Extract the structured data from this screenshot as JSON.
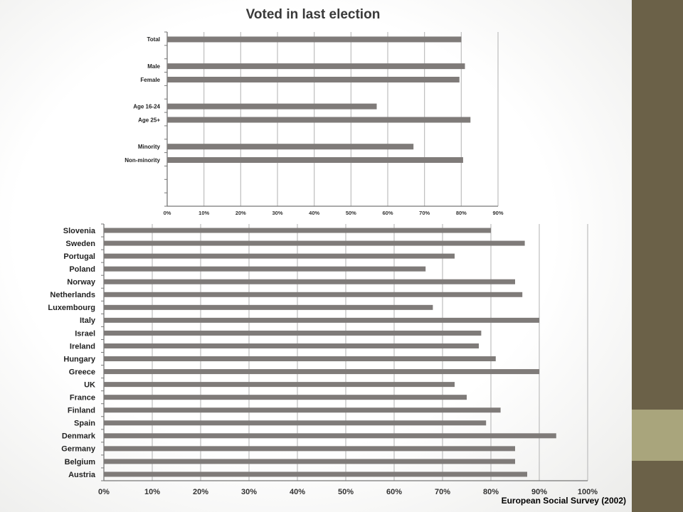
{
  "colors": {
    "bar": "#7f7b79",
    "grid": "#bdbdbd",
    "sidebar_dark": "#6b6148",
    "sidebar_light": "#a9a57c"
  },
  "source_note": "European Social Survey (2002)",
  "chart_data": [
    {
      "type": "bar",
      "orientation": "horizontal",
      "title": "Voted in last election",
      "categories": [
        "Total",
        "Male",
        "Female",
        "Age 16-24",
        "Age 25+",
        "Minority",
        "Non-minority"
      ],
      "values": [
        80,
        81,
        79.5,
        57,
        82.5,
        67,
        80.5
      ],
      "x_ticks": [
        "0%",
        "10%",
        "20%",
        "30%",
        "40%",
        "50%",
        "60%",
        "70%",
        "80%",
        "90%"
      ],
      "xlim": [
        0,
        90
      ],
      "grid": true
    },
    {
      "type": "bar",
      "orientation": "horizontal",
      "categories": [
        "Slovenia",
        "Sweden",
        "Portugal",
        "Poland",
        "Norway",
        "Netherlands",
        "Luxembourg",
        "Italy",
        "Israel",
        "Ireland",
        "Hungary",
        "Greece",
        "UK",
        "France",
        "Finland",
        "Spain",
        "Denmark",
        "Germany",
        "Belgium",
        "Austria"
      ],
      "values": [
        80,
        87,
        72.5,
        66.5,
        85,
        86.5,
        68,
        90,
        78,
        77.5,
        81,
        90,
        72.5,
        75,
        82,
        79,
        93.5,
        85,
        85,
        87.5
      ],
      "x_ticks": [
        "0%",
        "10%",
        "20%",
        "30%",
        "40%",
        "50%",
        "60%",
        "70%",
        "80%",
        "90%",
        "100%"
      ],
      "xlim": [
        0,
        100
      ],
      "grid": true
    }
  ]
}
